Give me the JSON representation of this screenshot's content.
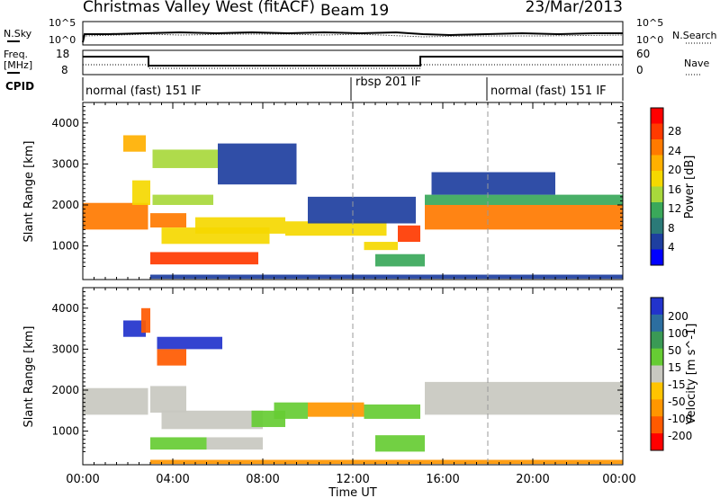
{
  "header": {
    "station": "Christmas Valley West (fitACF)",
    "beam": "Beam 19",
    "date": "23/Mar/2013"
  },
  "noise_panel": {
    "left_label": "N.Sky",
    "left_ticks": [
      "10^5",
      "10^0"
    ],
    "right_ticks": [
      "10^5",
      "10^0"
    ],
    "right_label": "N.Search"
  },
  "freq_panel": {
    "left_label_1": "Freq.",
    "left_label_2": "[MHz]",
    "left_ticks": [
      "18",
      "8"
    ],
    "right_ticks": [
      "60",
      "0"
    ],
    "right_label": "Nave"
  },
  "cpid_panel": {
    "label": "CPID",
    "segments": [
      {
        "name": "normal (fast) 151 IF",
        "start_hour": 0
      },
      {
        "name": "rbsp 201 IF",
        "start_hour": 12
      },
      {
        "name": "normal (fast) 151 IF",
        "start_hour": 18
      }
    ]
  },
  "power_colorbar": {
    "label": "Power [dB]",
    "ticks": [
      "28",
      "24",
      "20",
      "16",
      "12",
      "8",
      "4"
    ],
    "colors": [
      "#ff0000",
      "#ff3a00",
      "#ff7a00",
      "#ffb000",
      "#f5d800",
      "#a8d83c",
      "#3aa85a",
      "#2b7a78",
      "#1e3fa0",
      "#0000ff"
    ]
  },
  "velocity_colorbar": {
    "label": "Velocity [m s^-1]",
    "ticks": [
      "200",
      "100",
      "50",
      "15",
      "-15",
      "-50",
      "-100",
      "-200"
    ],
    "colors": [
      "#2233cc",
      "#2c6ea0",
      "#3a9a55",
      "#66cc33",
      "#c8c8c0",
      "#ffc400",
      "#ff9600",
      "#ff5a00",
      "#ff0000"
    ]
  },
  "x_axis": {
    "label": "Time UT",
    "ticks": [
      "00:00",
      "04:00",
      "08:00",
      "12:00",
      "16:00",
      "20:00",
      "00:00"
    ]
  },
  "chart_data": [
    {
      "type": "heatmap",
      "quantity": "Power",
      "xlabel": "Time UT",
      "ylabel": "Slant Range [km]",
      "xlim_hours": [
        0,
        24
      ],
      "ylim_km": [
        180,
        4500
      ],
      "y_ticks": [
        1000,
        2000,
        3000,
        4000
      ],
      "color_scale_db": [
        0,
        30
      ],
      "segments": [
        {
          "t0": 0.0,
          "t1": 2.9,
          "r0": 1400,
          "r1": 2050,
          "value_db": 22
        },
        {
          "t0": 2.2,
          "t1": 3.0,
          "r0": 2000,
          "r1": 2600,
          "value_db": 18
        },
        {
          "t0": 1.8,
          "t1": 2.8,
          "r0": 3300,
          "r1": 3700,
          "value_db": 20
        },
        {
          "t0": 3.0,
          "t1": 4.6,
          "r0": 1450,
          "r1": 1800,
          "value_db": 24
        },
        {
          "t0": 3.1,
          "t1": 5.8,
          "r0": 2000,
          "r1": 2250,
          "value_db": 14
        },
        {
          "t0": 3.1,
          "t1": 6.0,
          "r0": 2900,
          "r1": 3350,
          "value_db": 14
        },
        {
          "t0": 3.5,
          "t1": 8.3,
          "r0": 1050,
          "r1": 1450,
          "value_db": 16
        },
        {
          "t0": 5.0,
          "t1": 9.0,
          "r0": 1300,
          "r1": 1700,
          "value_db": 18
        },
        {
          "t0": 3.0,
          "t1": 7.8,
          "r0": 550,
          "r1": 850,
          "value_db": 26
        },
        {
          "t0": 9.0,
          "t1": 13.5,
          "r0": 1250,
          "r1": 1600,
          "value_db": 16
        },
        {
          "t0": 6.0,
          "t1": 9.5,
          "r0": 2500,
          "r1": 3500,
          "value_db": 6
        },
        {
          "t0": 10.0,
          "t1": 14.8,
          "r0": 1550,
          "r1": 2200,
          "value_db": 6
        },
        {
          "t0": 12.5,
          "t1": 14.0,
          "r0": 900,
          "r1": 1100,
          "value_db": 18
        },
        {
          "t0": 13.0,
          "t1": 15.2,
          "r0": 500,
          "r1": 800,
          "value_db": 10
        },
        {
          "t0": 14.0,
          "t1": 15.0,
          "r0": 1100,
          "r1": 1500,
          "value_db": 26
        },
        {
          "t0": 15.2,
          "t1": 24.0,
          "r0": 1400,
          "r1": 2000,
          "value_db": 24
        },
        {
          "t0": 15.2,
          "t1": 24.0,
          "r0": 2000,
          "r1": 2250,
          "value_db": 12
        },
        {
          "t0": 15.5,
          "t1": 21.0,
          "r0": 2250,
          "r1": 2800,
          "value_db": 6
        },
        {
          "t0": 3.0,
          "t1": 24.0,
          "r0": 200,
          "r1": 300,
          "value_db": 6
        }
      ]
    },
    {
      "type": "heatmap",
      "quantity": "Velocity",
      "xlabel": "Time UT",
      "ylabel": "Slant Range [km]",
      "xlim_hours": [
        0,
        24
      ],
      "ylim_km": [
        180,
        4500
      ],
      "y_ticks": [
        1000,
        2000,
        3000,
        4000
      ],
      "color_scale_ms": [
        -250,
        250
      ],
      "segments": [
        {
          "t0": 0.0,
          "t1": 2.9,
          "r0": 1400,
          "r1": 2050,
          "value_ms": 0
        },
        {
          "t0": 1.8,
          "t1": 2.8,
          "r0": 3300,
          "r1": 3700,
          "value_ms": 200
        },
        {
          "t0": 2.6,
          "t1": 3.0,
          "r0": 3400,
          "r1": 4000,
          "value_ms": -150
        },
        {
          "t0": 3.0,
          "t1": 4.6,
          "r0": 1450,
          "r1": 2100,
          "value_ms": 0
        },
        {
          "t0": 3.3,
          "t1": 6.2,
          "r0": 3000,
          "r1": 3300,
          "value_ms": 220
        },
        {
          "t0": 3.3,
          "t1": 4.6,
          "r0": 2600,
          "r1": 3000,
          "value_ms": -200
        },
        {
          "t0": 3.5,
          "t1": 8.0,
          "r0": 1050,
          "r1": 1500,
          "value_ms": 0
        },
        {
          "t0": 7.5,
          "t1": 9.0,
          "r0": 1100,
          "r1": 1500,
          "value_ms": 40
        },
        {
          "t0": 8.5,
          "t1": 10.0,
          "r0": 1300,
          "r1": 1700,
          "value_ms": 40
        },
        {
          "t0": 10.0,
          "t1": 12.5,
          "r0": 1350,
          "r1": 1700,
          "value_ms": -60
        },
        {
          "t0": 12.5,
          "t1": 15.0,
          "r0": 1300,
          "r1": 1650,
          "value_ms": 40
        },
        {
          "t0": 3.0,
          "t1": 5.5,
          "r0": 550,
          "r1": 850,
          "value_ms": 40
        },
        {
          "t0": 5.5,
          "t1": 8.0,
          "r0": 550,
          "r1": 850,
          "value_ms": 0
        },
        {
          "t0": 13.0,
          "t1": 15.2,
          "r0": 500,
          "r1": 900,
          "value_ms": 40
        },
        {
          "t0": 15.2,
          "t1": 24.0,
          "r0": 1400,
          "r1": 2200,
          "value_ms": 0
        },
        {
          "t0": 3.0,
          "t1": 24.0,
          "r0": 200,
          "r1": 300,
          "value_ms": -70
        }
      ]
    }
  ]
}
